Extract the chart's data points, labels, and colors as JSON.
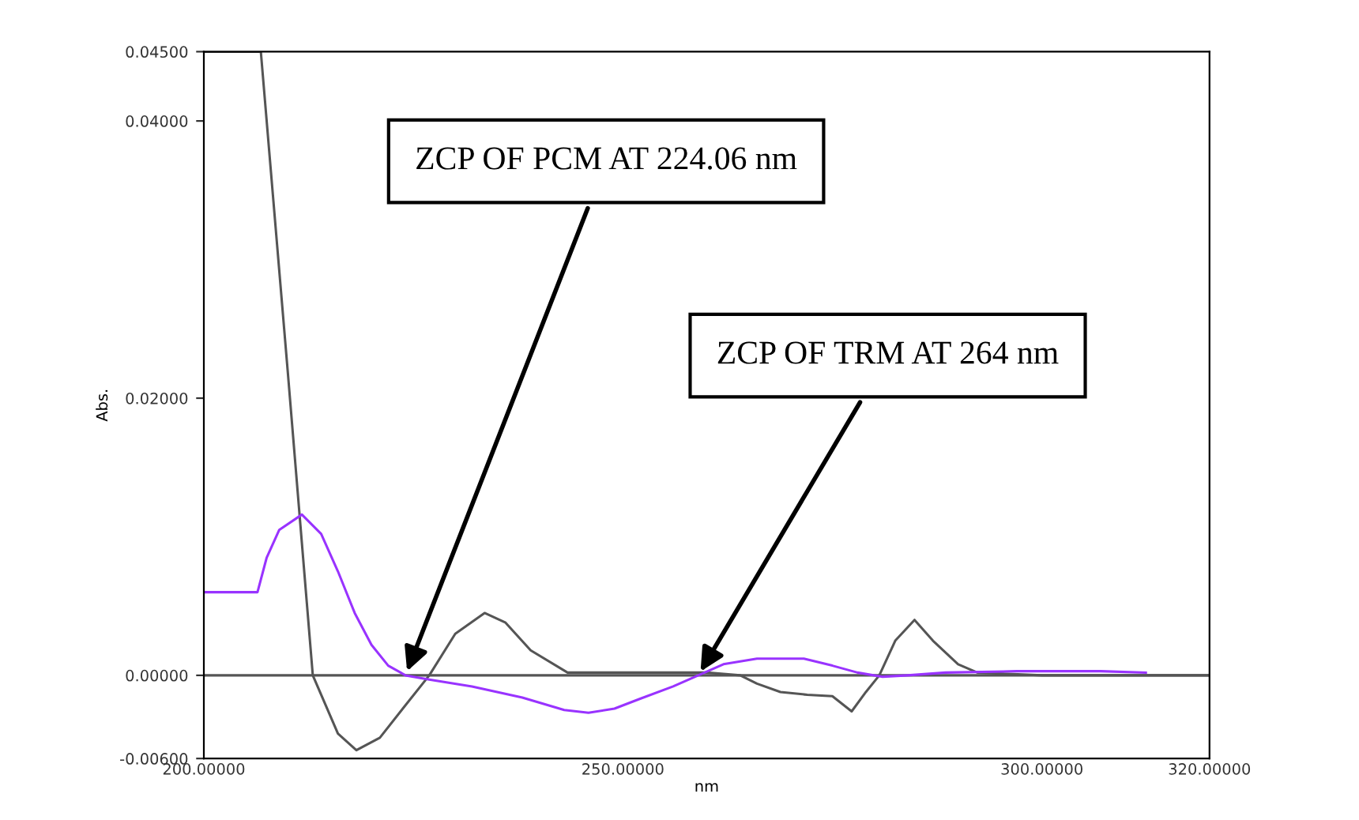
{
  "chart_data": {
    "type": "line",
    "xlabel": "nm",
    "ylabel": "Abs.",
    "xlim": [
      200,
      320
    ],
    "xticks": [
      {
        "value": 200,
        "label": "200.00000"
      },
      {
        "value": 250,
        "label": "250.00000"
      },
      {
        "value": 300,
        "label": "300.00000"
      },
      {
        "value": 320,
        "label": "320.00000"
      }
    ],
    "ylim": [
      -0.006,
      0.045
    ],
    "yticks": [
      {
        "value": -0.006,
        "label": "-0.00600"
      },
      {
        "value": 0,
        "label": "0.00000"
      },
      {
        "value": 0.02,
        "label": "0.02000"
      },
      {
        "value": 0.04,
        "label": "0.04000"
      },
      {
        "value": 0.045,
        "label": "0.04500"
      }
    ],
    "grid": false,
    "legend": false,
    "marker": "none",
    "line_style": "solid",
    "series": [
      {
        "color": "#555555",
        "x": [
          200,
          206.8,
          210,
          213,
          216,
          218.2,
          221,
          224,
          226.9,
          230,
          233.5,
          236,
          239,
          243.4,
          250,
          255,
          260,
          264,
          266,
          268.8,
          272,
          275,
          277.3,
          279,
          280.6,
          282.5,
          284.8,
          287,
          290,
          292.3,
          300,
          310,
          320
        ],
        "values": [
          0.045,
          0.045,
          0.022,
          0.0,
          -0.0042,
          -0.0054,
          -0.0045,
          -0.0022,
          0.0,
          0.003,
          0.0045,
          0.0038,
          0.0018,
          0.0002,
          0.0002,
          0.0002,
          0.0002,
          0.0,
          -0.0006,
          -0.0012,
          -0.0014,
          -0.0015,
          -0.0026,
          -0.0012,
          0.0,
          0.0025,
          0.004,
          0.0025,
          0.0008,
          0.0002,
          0.0,
          0.0,
          0.0
        ]
      },
      {
        "color": "#9933ff",
        "x": [
          200,
          206.4,
          207.5,
          209,
          211.7,
          214,
          216,
          218,
          220,
          222,
          224.06,
          226.9,
          232,
          238,
          243,
          245.9,
          249,
          252,
          256,
          259,
          262,
          266,
          269,
          271.6,
          275,
          278,
          281,
          284,
          288.5,
          297,
          307,
          312.4
        ],
        "values": [
          0.006,
          0.006,
          0.0085,
          0.0105,
          0.0116,
          0.0102,
          0.0075,
          0.0045,
          0.0022,
          0.0007,
          0.0,
          -0.0003,
          -0.0008,
          -0.0016,
          -0.0025,
          -0.0027,
          -0.0024,
          -0.0017,
          -0.0008,
          0.0,
          0.0008,
          0.0012,
          0.0012,
          0.0012,
          0.0007,
          0.0002,
          -0.0001,
          0.0,
          0.0002,
          0.0003,
          0.0003,
          0.0002
        ]
      }
    ],
    "ref_lines": [
      {
        "axis": "y",
        "value": 0,
        "color": "#555555"
      }
    ],
    "annotations": [
      {
        "text": "ZCP OF PCM AT 224.06 nm",
        "x": 224.06,
        "y": 0
      },
      {
        "text": "ZCP OF TRM AT 264 nm",
        "x": 259,
        "y": 0
      }
    ]
  }
}
